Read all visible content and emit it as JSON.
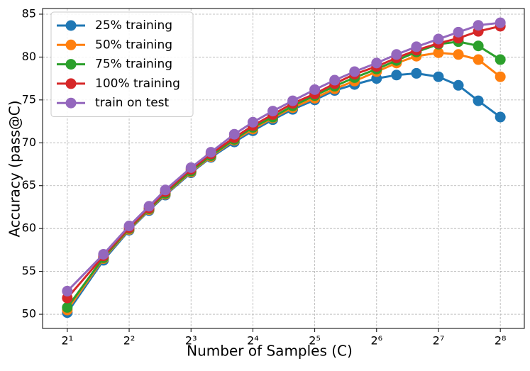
{
  "chart_data": {
    "type": "line",
    "x_label": "Number of Samples (C)",
    "y_label": "Accuracy (pass@C)",
    "x": [
      2,
      3,
      4,
      5,
      6,
      8,
      10,
      13,
      16,
      20,
      25,
      32,
      40,
      50,
      64,
      80,
      100,
      128,
      160,
      200,
      256
    ],
    "xscale": "log2",
    "xlim": [
      1.516,
      335
    ],
    "xticks": [
      {
        "value": 2,
        "label": "2¹"
      },
      {
        "value": 4,
        "label": "2²"
      },
      {
        "value": 8,
        "label": "2³"
      },
      {
        "value": 16,
        "label": "2⁴"
      },
      {
        "value": 32,
        "label": "2⁵"
      },
      {
        "value": 64,
        "label": "2⁶"
      },
      {
        "value": 128,
        "label": "2⁷"
      },
      {
        "value": 256,
        "label": "2⁸"
      }
    ],
    "ylim": [
      48.35,
      85.66
    ],
    "yticks": [
      50,
      55,
      60,
      65,
      70,
      75,
      80,
      85
    ],
    "grid": true,
    "legend": "upper left",
    "series": [
      {
        "name": "25% training",
        "color": "#1f77b4",
        "values": [
          50.2,
          56.3,
          59.8,
          62.1,
          63.9,
          66.5,
          68.3,
          70.1,
          71.4,
          72.7,
          73.9,
          75.0,
          76.1,
          76.8,
          77.5,
          77.9,
          78.1,
          77.7,
          76.7,
          74.9,
          73.0
        ]
      },
      {
        "name": "50% training",
        "color": "#ff7f0e",
        "values": [
          50.5,
          56.5,
          59.9,
          62.2,
          64.0,
          66.6,
          68.4,
          70.3,
          71.6,
          72.9,
          74.1,
          75.2,
          76.3,
          77.2,
          78.3,
          79.3,
          80.1,
          80.5,
          80.3,
          79.7,
          77.7
        ]
      },
      {
        "name": "75% training",
        "color": "#2ca02c",
        "values": [
          50.8,
          56.6,
          60.0,
          62.3,
          64.1,
          66.7,
          68.5,
          70.4,
          71.8,
          73.0,
          74.3,
          75.5,
          76.6,
          77.6,
          78.6,
          79.6,
          80.6,
          81.5,
          81.8,
          81.3,
          79.7
        ]
      },
      {
        "name": "100% training",
        "color": "#d62728",
        "values": [
          51.9,
          56.8,
          60.1,
          62.4,
          64.3,
          66.9,
          68.7,
          70.6,
          72.0,
          73.3,
          74.6,
          75.7,
          76.9,
          78.0,
          78.9,
          79.9,
          80.8,
          81.6,
          82.2,
          83.0,
          83.6
        ]
      },
      {
        "name": "train on test",
        "color": "#9467bd",
        "values": [
          52.7,
          57.0,
          60.3,
          62.6,
          64.5,
          67.1,
          68.9,
          71.0,
          72.4,
          73.7,
          74.9,
          76.2,
          77.3,
          78.3,
          79.3,
          80.3,
          81.2,
          82.1,
          82.9,
          83.7,
          84.0
        ]
      }
    ]
  }
}
